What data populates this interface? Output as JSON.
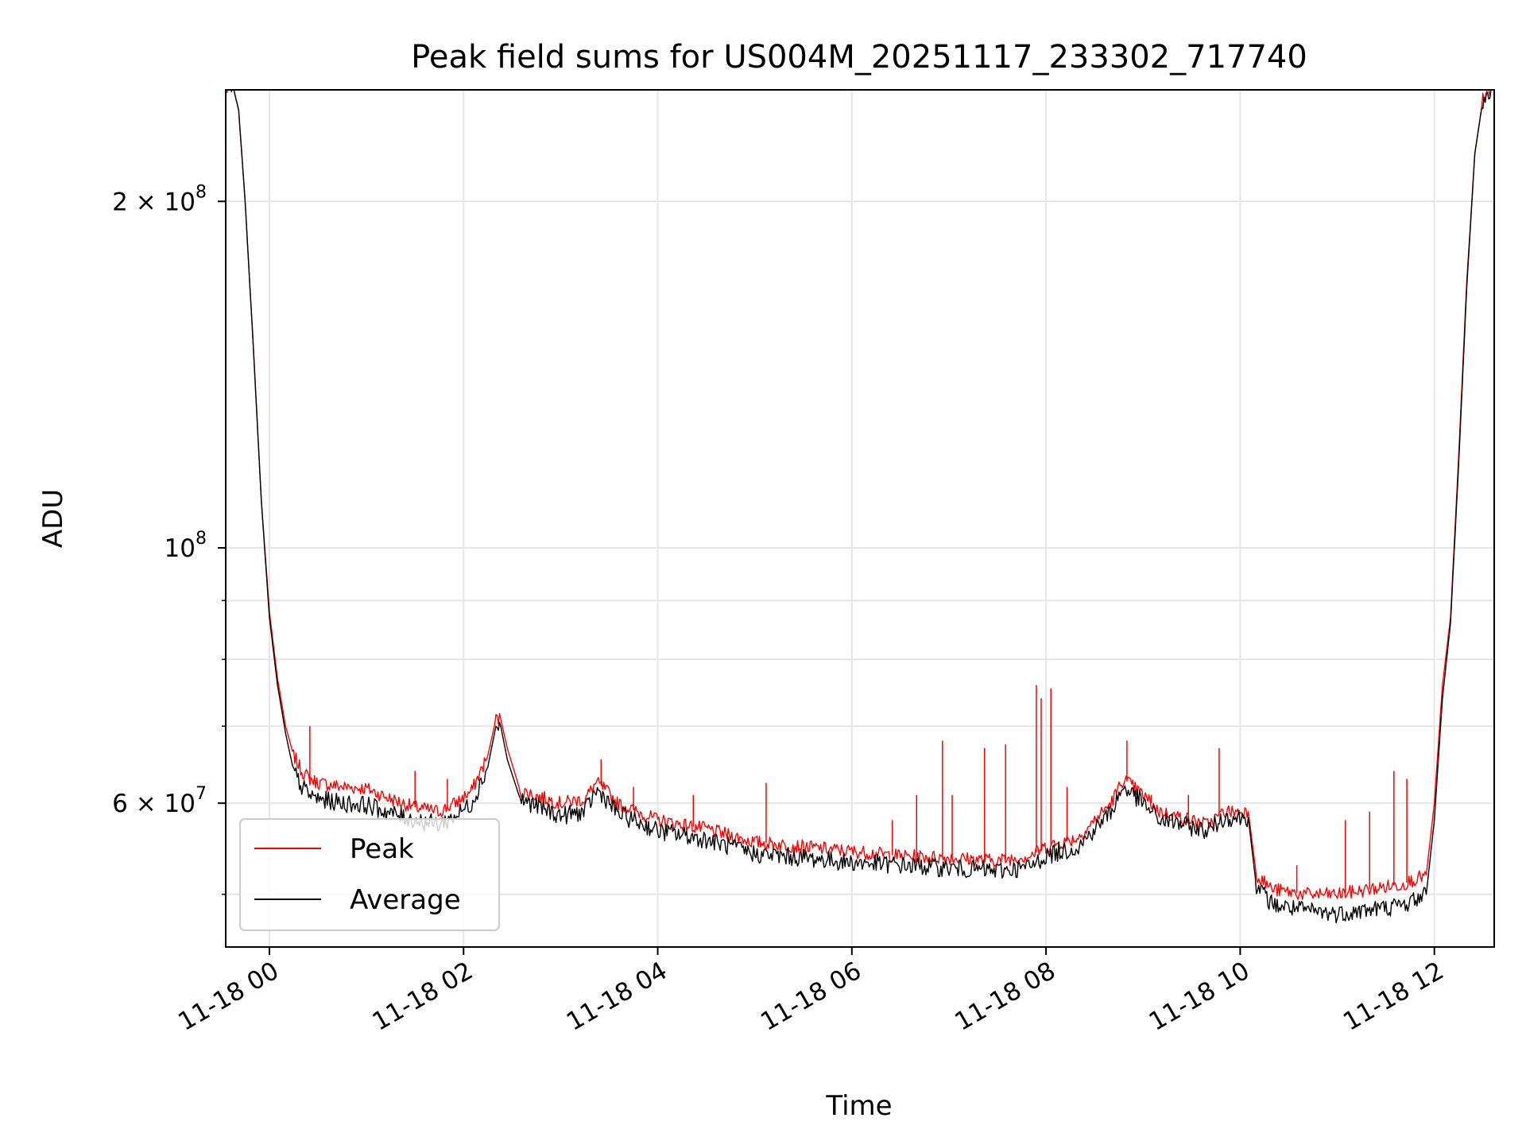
{
  "chart_data": {
    "type": "line",
    "title": "Peak field sums for US004M_20251117_233302_717740",
    "xlabel": "Time",
    "ylabel": "ADU",
    "x_scale": "time",
    "y_scale": "log",
    "xlim": [
      "11-17 23:33",
      "11-18 12:37"
    ],
    "ylim": [
      45000000,
      250000000
    ],
    "x_ticks": [
      {
        "value": "11-18 00:00",
        "label": "11-18 00"
      },
      {
        "value": "11-18 02:00",
        "label": "11-18 02"
      },
      {
        "value": "11-18 04:00",
        "label": "11-18 04"
      },
      {
        "value": "11-18 06:00",
        "label": "11-18 06"
      },
      {
        "value": "11-18 08:00",
        "label": "11-18 08"
      },
      {
        "value": "11-18 10:00",
        "label": "11-18 10"
      },
      {
        "value": "11-18 12:00",
        "label": "11-18 12"
      }
    ],
    "y_ticks_major": [
      {
        "value": 60000000,
        "label_mantissa": "6 × 10",
        "label_exp": "7"
      },
      {
        "value": 100000000,
        "label_mantissa": "10",
        "label_exp": "8"
      },
      {
        "value": 200000000,
        "label_mantissa": "2 × 10",
        "label_exp": "8"
      }
    ],
    "y_ticks_minor": [
      50000000,
      70000000,
      80000000,
      90000000
    ],
    "grid": true,
    "legend": {
      "placement": "lower-left"
    },
    "series": [
      {
        "name": "Peak",
        "color": "#ff0000",
        "x": [
          "11-17 23:33",
          "11-17 23:38",
          "11-17 23:41",
          "11-17 23:45",
          "11-17 23:50",
          "11-17 23:55",
          "11-18 00:00",
          "11-18 00:05",
          "11-18 00:10",
          "11-18 00:15",
          "11-18 00:20",
          "11-18 00:25",
          "11-18 00:30",
          "11-18 00:45",
          "11-18 01:00",
          "11-18 01:15",
          "11-18 01:30",
          "11-18 01:45",
          "11-18 01:55",
          "11-18 02:05",
          "11-18 02:15",
          "11-18 02:20",
          "11-18 02:23",
          "11-18 02:27",
          "11-18 02:35",
          "11-18 03:00",
          "11-18 03:15",
          "11-18 03:22",
          "11-18 03:26",
          "11-18 03:35",
          "11-18 04:00",
          "11-18 04:30",
          "11-18 05:00",
          "11-18 05:30",
          "11-18 06:00",
          "11-18 06:30",
          "11-18 07:00",
          "11-18 07:30",
          "11-18 07:50",
          "11-18 08:00",
          "11-18 08:20",
          "11-18 08:40",
          "11-18 08:48",
          "11-18 09:00",
          "11-18 09:10",
          "11-18 09:20",
          "11-18 09:30",
          "11-18 09:40",
          "11-18 09:50",
          "11-18 10:05",
          "11-18 10:10",
          "11-18 10:20",
          "11-18 10:40",
          "11-18 11:00",
          "11-18 11:20",
          "11-18 11:40",
          "11-18 11:55",
          "11-18 12:00",
          "11-18 12:05",
          "11-18 12:10",
          "11-18 12:15",
          "11-18 12:20",
          "11-18 12:25",
          "11-18 12:30",
          "11-18 12:35"
        ],
        "y": [
          250000000,
          250000000,
          240000000,
          200000000,
          150000000,
          110000000,
          88000000,
          77000000,
          70000000,
          66000000,
          64000000,
          63000000,
          62500000,
          62000000,
          61800000,
          60500000,
          59500000,
          59000000,
          60000000,
          61500000,
          66000000,
          71000000,
          71000000,
          67000000,
          61500000,
          60000000,
          60500000,
          62500000,
          62000000,
          60000000,
          58000000,
          57000000,
          55500000,
          55000000,
          54500000,
          54000000,
          53800000,
          53500000,
          54000000,
          55000000,
          56000000,
          60000000,
          63000000,
          61000000,
          59000000,
          58500000,
          58000000,
          57500000,
          59000000,
          59000000,
          52000000,
          50500000,
          50000000,
          50000000,
          50500000,
          51000000,
          52000000,
          60000000,
          76000000,
          87000000,
          120000000,
          170000000,
          220000000,
          245000000,
          250000000
        ]
      },
      {
        "name": "Average",
        "color": "#000000",
        "x": [
          "11-17 23:33",
          "11-17 23:38",
          "11-17 23:41",
          "11-17 23:45",
          "11-17 23:50",
          "11-17 23:55",
          "11-18 00:00",
          "11-18 00:05",
          "11-18 00:10",
          "11-18 00:15",
          "11-18 00:20",
          "11-18 00:25",
          "11-18 00:30",
          "11-18 00:45",
          "11-18 01:00",
          "11-18 01:15",
          "11-18 01:30",
          "11-18 01:45",
          "11-18 01:55",
          "11-18 02:05",
          "11-18 02:15",
          "11-18 02:20",
          "11-18 02:23",
          "11-18 02:27",
          "11-18 02:35",
          "11-18 03:00",
          "11-18 03:15",
          "11-18 03:22",
          "11-18 03:26",
          "11-18 03:35",
          "11-18 04:00",
          "11-18 04:30",
          "11-18 05:00",
          "11-18 05:30",
          "11-18 06:00",
          "11-18 06:30",
          "11-18 07:00",
          "11-18 07:30",
          "11-18 07:50",
          "11-18 08:00",
          "11-18 08:20",
          "11-18 08:40",
          "11-18 08:48",
          "11-18 09:00",
          "11-18 09:10",
          "11-18 09:20",
          "11-18 09:30",
          "11-18 09:40",
          "11-18 09:50",
          "11-18 10:05",
          "11-18 10:10",
          "11-18 10:20",
          "11-18 10:40",
          "11-18 11:00",
          "11-18 11:20",
          "11-18 11:40",
          "11-18 11:55",
          "11-18 12:00",
          "11-18 12:05",
          "11-18 12:10",
          "11-18 12:15",
          "11-18 12:20",
          "11-18 12:25",
          "11-18 12:30",
          "11-18 12:35"
        ],
        "y": [
          250000000,
          250000000,
          240000000,
          200000000,
          150000000,
          110000000,
          87000000,
          76000000,
          69000000,
          64000000,
          62000000,
          61000000,
          60500000,
          60000000,
          59800000,
          58800000,
          58000000,
          57500000,
          58500000,
          60000000,
          64500000,
          70000000,
          70000000,
          65500000,
          60500000,
          58500000,
          59000000,
          61500000,
          61000000,
          58800000,
          56800000,
          55800000,
          54200000,
          53800000,
          53300000,
          53000000,
          52700000,
          52400000,
          52800000,
          54000000,
          55000000,
          59000000,
          62000000,
          60000000,
          58000000,
          57800000,
          57200000,
          56800000,
          58300000,
          58300000,
          50800000,
          49000000,
          48400000,
          48100000,
          48500000,
          48900000,
          50000000,
          58000000,
          74000000,
          86000000,
          118000000,
          168000000,
          220000000,
          245000000,
          250000000
        ]
      }
    ],
    "peak_spikes": [
      {
        "x": "11-18 00:25",
        "y": 70000000
      },
      {
        "x": "11-18 01:30",
        "y": 64000000
      },
      {
        "x": "11-18 01:50",
        "y": 63000000
      },
      {
        "x": "11-18 03:25",
        "y": 65500000
      },
      {
        "x": "11-18 03:45",
        "y": 62000000
      },
      {
        "x": "11-18 04:22",
        "y": 61000000
      },
      {
        "x": "11-18 05:07",
        "y": 62500000
      },
      {
        "x": "11-18 06:25",
        "y": 58000000
      },
      {
        "x": "11-18 06:40",
        "y": 61000000
      },
      {
        "x": "11-18 06:56",
        "y": 68000000
      },
      {
        "x": "11-18 07:02",
        "y": 61000000
      },
      {
        "x": "11-18 07:22",
        "y": 67000000
      },
      {
        "x": "11-18 07:35",
        "y": 67500000
      },
      {
        "x": "11-18 07:54",
        "y": 76000000
      },
      {
        "x": "11-18 07:57",
        "y": 74000000
      },
      {
        "x": "11-18 08:03",
        "y": 75500000
      },
      {
        "x": "11-18 08:13",
        "y": 62000000
      },
      {
        "x": "11-18 08:50",
        "y": 68000000
      },
      {
        "x": "11-18 09:05",
        "y": 61000000
      },
      {
        "x": "11-18 09:28",
        "y": 61000000
      },
      {
        "x": "11-18 09:47",
        "y": 67000000
      },
      {
        "x": "11-18 10:35",
        "y": 53000000
      },
      {
        "x": "11-18 11:05",
        "y": 58000000
      },
      {
        "x": "11-18 11:20",
        "y": 59000000
      },
      {
        "x": "11-18 11:35",
        "y": 64000000
      },
      {
        "x": "11-18 11:43",
        "y": 63000000
      }
    ]
  }
}
